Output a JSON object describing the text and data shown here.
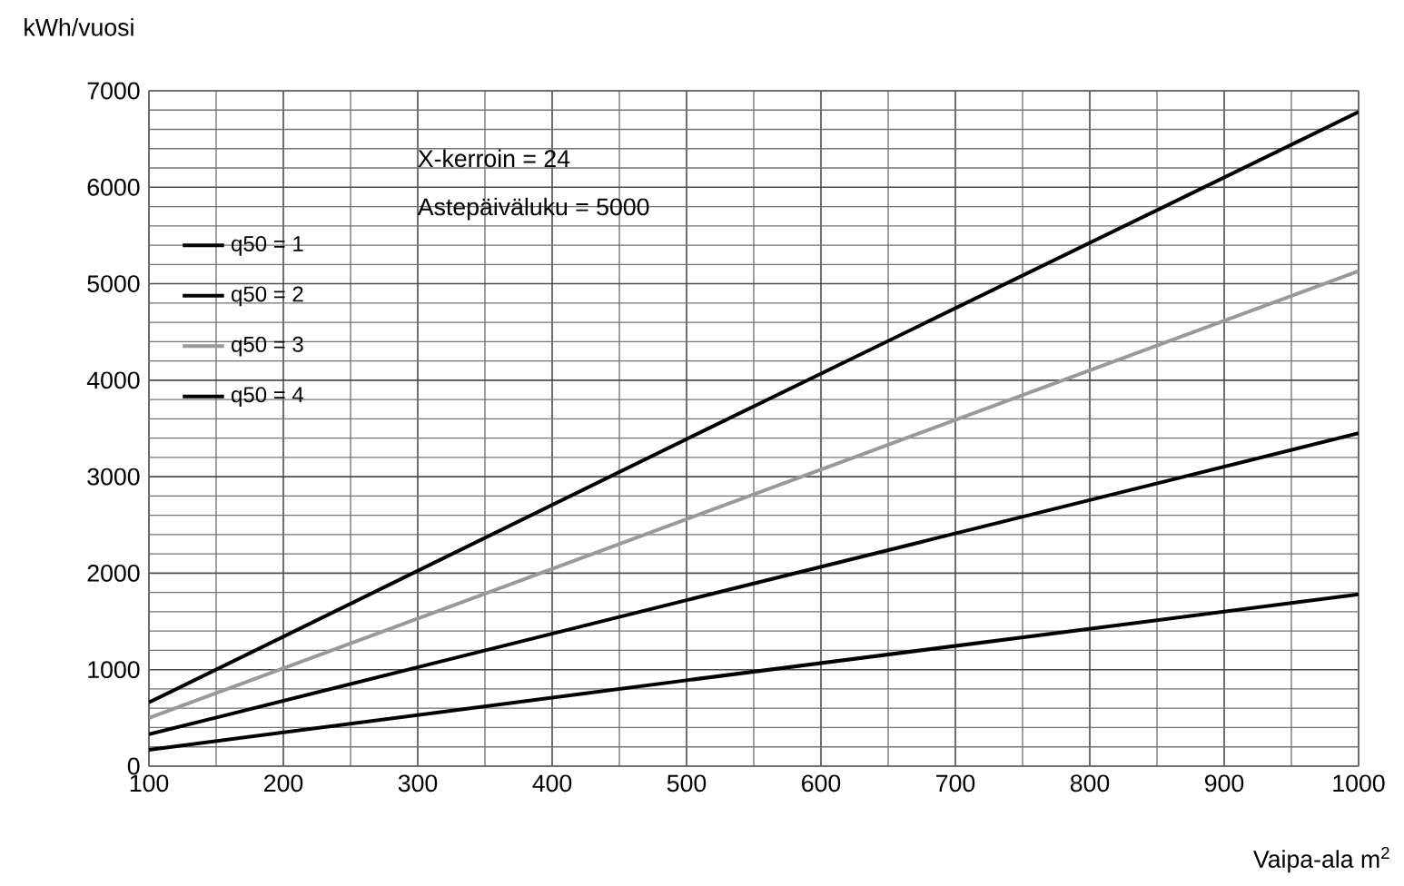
{
  "chart_data": {
    "type": "line",
    "xlabel": "Vaipa-ala m$^{2}$",
    "ylabel": "kWh/vuosi",
    "annotations": [
      "X-kerroin = 24",
      "Astepäiväluku = 5000"
    ],
    "x": [
      100,
      500,
      1000
    ],
    "series": [
      {
        "name": "q50 = 1",
        "color": "#000000",
        "values": [
          170,
          890,
          1780
        ]
      },
      {
        "name": "q50 = 2",
        "color": "#000000",
        "values": [
          330,
          1720,
          3450
        ]
      },
      {
        "name": "q50 = 3",
        "color": "#999999",
        "values": [
          500,
          2560,
          5130
        ]
      },
      {
        "name": "q50 = 4",
        "color": "#000000",
        "values": [
          660,
          3390,
          6780
        ]
      }
    ],
    "xlim": [
      100,
      1000
    ],
    "xticks": [
      100,
      200,
      300,
      400,
      500,
      600,
      700,
      800,
      900,
      1000
    ],
    "ylim": [
      0,
      7000
    ],
    "yticks": [
      0,
      1000,
      2000,
      3000,
      4000,
      5000,
      6000,
      7000
    ],
    "grid": true,
    "legend": "left",
    "marker": "none",
    "line_style": "solid"
  }
}
